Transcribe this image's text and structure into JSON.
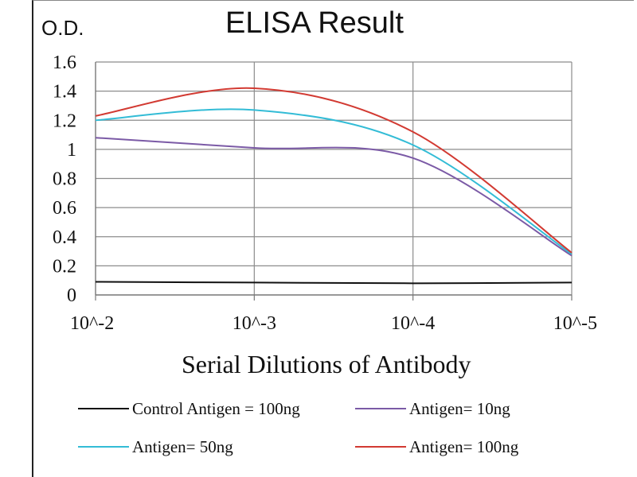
{
  "chart_data": {
    "type": "line",
    "title": "ELISA Result",
    "ylabel": "O.D.",
    "xlabel": "Serial Dilutions of Antibody",
    "x": [
      "10^-2",
      "10^-3",
      "10^-4",
      "10^-5"
    ],
    "ylim": [
      0,
      1.6
    ],
    "yticks": [
      "0",
      "0.2",
      "0.4",
      "0.6",
      "0.8",
      "1",
      "1.2",
      "1.4",
      "1.6"
    ],
    "grid": true,
    "legend_position": "bottom",
    "series": [
      {
        "name": "Control Antigen = 100ng",
        "color": "#111111",
        "values": [
          0.09,
          0.085,
          0.08,
          0.085
        ]
      },
      {
        "name": "Antigen= 10ng",
        "color": "#7b5aa6",
        "values": [
          1.08,
          1.01,
          0.94,
          0.27
        ]
      },
      {
        "name": "Antigen= 50ng",
        "color": "#33bcd6",
        "values": [
          1.2,
          1.27,
          1.03,
          0.28
        ]
      },
      {
        "name": "Antigen= 100ng",
        "color": "#d23a32",
        "values": [
          1.23,
          1.42,
          1.12,
          0.29
        ]
      }
    ]
  }
}
